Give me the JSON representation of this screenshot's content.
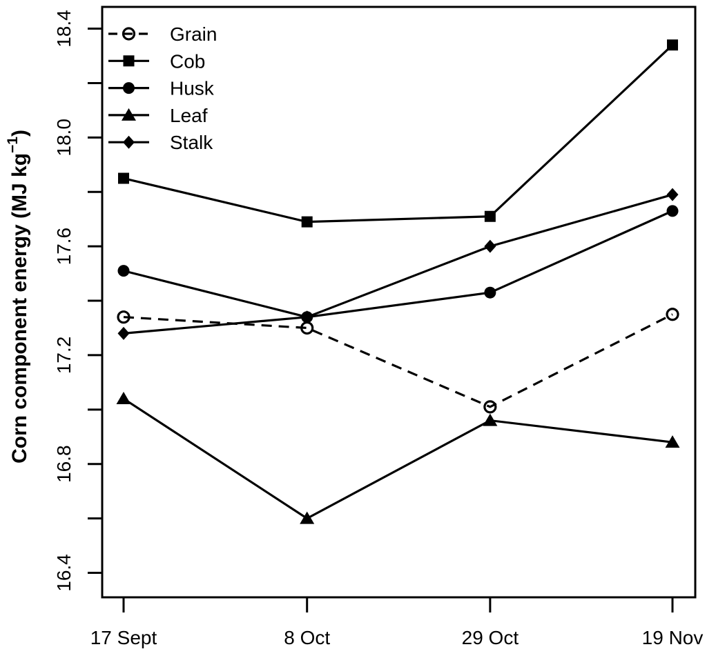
{
  "figure": {
    "background": "#ffffff",
    "foreground": "#000000"
  },
  "chart_data": {
    "type": "line",
    "title": "",
    "xlabel": "",
    "ylabel": "Corn component energy (MJ kg⁻¹)",
    "ylabel_parts": [
      "Corn component energy (MJ kg",
      "−1",
      ")"
    ],
    "categories": [
      "17 Sept",
      "8 Oct",
      "29 Oct",
      "19 Nov"
    ],
    "series": [
      {
        "name": "Grain",
        "marker": "open-circle",
        "line": "dashed",
        "values": [
          17.34,
          17.3,
          17.01,
          17.35
        ]
      },
      {
        "name": "Cob",
        "marker": "filled-square",
        "line": "solid",
        "values": [
          17.85,
          17.69,
          17.71,
          18.34
        ]
      },
      {
        "name": "Husk",
        "marker": "filled-circle",
        "line": "solid",
        "values": [
          17.51,
          17.34,
          17.43,
          17.73
        ]
      },
      {
        "name": "Leaf",
        "marker": "filled-triangle",
        "line": "solid",
        "values": [
          17.04,
          16.6,
          16.96,
          16.88
        ]
      },
      {
        "name": "Stalk",
        "marker": "filled-diamond",
        "line": "solid",
        "values": [
          17.28,
          17.34,
          17.6,
          17.79
        ]
      }
    ],
    "y_ticks": [
      {
        "value": 18.4,
        "label": "18.4"
      },
      {
        "value": 18.2,
        "label": ""
      },
      {
        "value": 18.0,
        "label": "18.0"
      },
      {
        "value": 17.8,
        "label": ""
      },
      {
        "value": 17.6,
        "label": "17.6"
      },
      {
        "value": 17.4,
        "label": ""
      },
      {
        "value": 17.2,
        "label": "17.2"
      },
      {
        "value": 17.0,
        "label": ""
      },
      {
        "value": 16.8,
        "label": "16.8"
      },
      {
        "value": 16.6,
        "label": ""
      },
      {
        "value": 16.4,
        "label": "16.4"
      }
    ],
    "ylim": [
      16.31,
      18.48
    ],
    "grid": false,
    "legend_position": "top-left",
    "legend_labels": [
      "Grain",
      "Cob",
      "Husk",
      "Leaf",
      "Stalk"
    ],
    "colors": {
      "line": "#000000",
      "background": "#ffffff"
    }
  }
}
